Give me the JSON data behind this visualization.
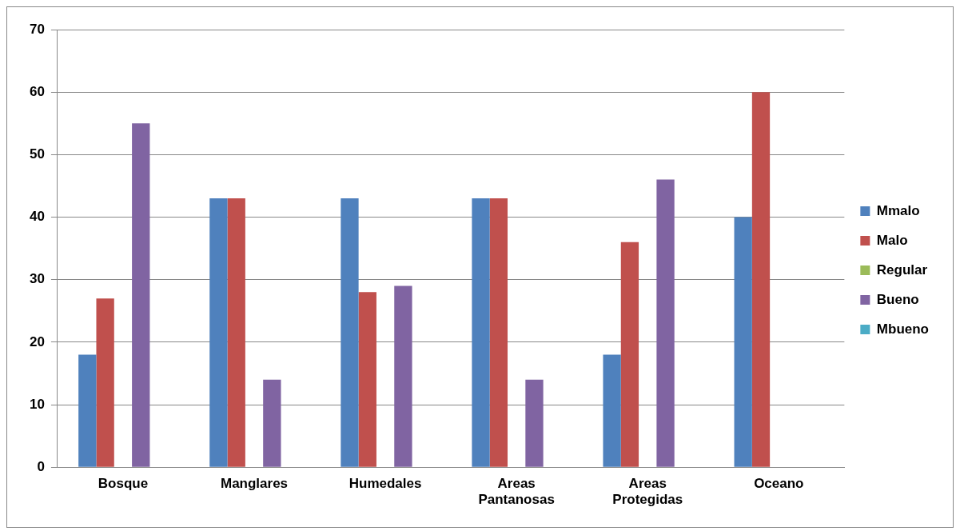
{
  "chart_data": {
    "type": "bar",
    "categories": [
      "Bosque",
      "Manglares",
      "Humedales",
      "Areas Pantanosas",
      "Areas Protegidas",
      "Oceano"
    ],
    "series": [
      {
        "name": "Mmalo",
        "color": "#4f81bd",
        "values": [
          18,
          43,
          43,
          43,
          18,
          40
        ]
      },
      {
        "name": "Malo",
        "color": "#c0504d",
        "values": [
          27,
          43,
          28,
          43,
          36,
          60
        ]
      },
      {
        "name": "Regular",
        "color": "#9bbb59",
        "values": [
          0,
          0,
          0,
          0,
          0,
          0
        ]
      },
      {
        "name": "Bueno",
        "color": "#8064a2",
        "values": [
          55,
          14,
          29,
          14,
          46,
          0
        ]
      },
      {
        "name": "Mbueno",
        "color": "#4bacc6",
        "values": [
          0,
          0,
          0,
          0,
          0,
          0
        ]
      }
    ],
    "ylim": [
      0,
      70
    ],
    "yticks": [
      0,
      10,
      20,
      30,
      40,
      50,
      60,
      70
    ],
    "grid": "y",
    "legend": "right"
  }
}
